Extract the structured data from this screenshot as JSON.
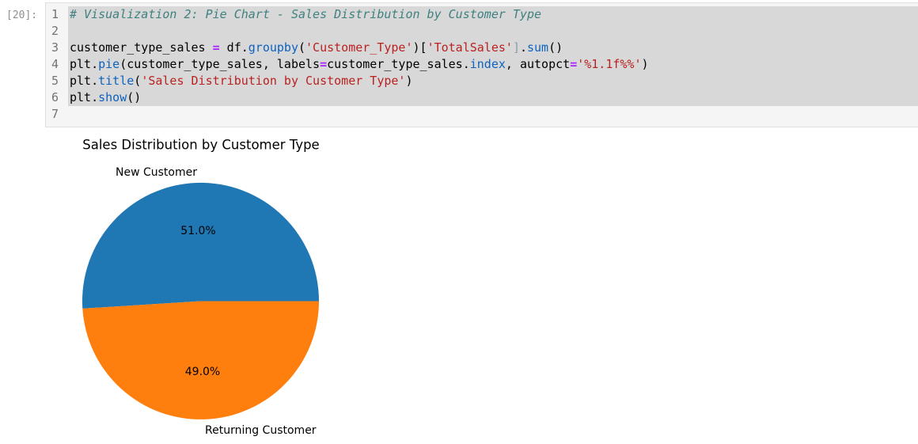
{
  "cell": {
    "execution_prompt": "[20]:",
    "lines": [
      {
        "no": "1",
        "selected": true,
        "tokens": [
          {
            "t": "# Visualization 2: Pie Chart - Sales Distribution by Customer Type",
            "c": "com"
          }
        ]
      },
      {
        "no": "2",
        "selected": true,
        "tokens": []
      },
      {
        "no": "3",
        "selected": true,
        "tokens": [
          {
            "t": "customer_type_sales ",
            "c": "v"
          },
          {
            "t": "=",
            "c": "op"
          },
          {
            "t": " df.",
            "c": "v"
          },
          {
            "t": "groupby",
            "c": "fn"
          },
          {
            "t": "(",
            "c": "v"
          },
          {
            "t": "'Customer_Type'",
            "c": "str"
          },
          {
            "t": ")[",
            "c": "v"
          },
          {
            "t": "'TotalSales'",
            "c": "str"
          },
          {
            "t": "]",
            "c": "brk"
          },
          {
            "t": ".",
            "c": "v"
          },
          {
            "t": "sum",
            "c": "fn"
          },
          {
            "t": "()",
            "c": "v"
          }
        ]
      },
      {
        "no": "4",
        "selected": true,
        "tokens": [
          {
            "t": "plt.",
            "c": "v"
          },
          {
            "t": "pie",
            "c": "fn"
          },
          {
            "t": "(customer_type_sales, labels",
            "c": "v"
          },
          {
            "t": "=",
            "c": "op"
          },
          {
            "t": "customer_type_sales.",
            "c": "v"
          },
          {
            "t": "index",
            "c": "fn"
          },
          {
            "t": ", autopct",
            "c": "v"
          },
          {
            "t": "=",
            "c": "op"
          },
          {
            "t": "'%1.1f%%'",
            "c": "str"
          },
          {
            "t": ")",
            "c": "v"
          }
        ]
      },
      {
        "no": "5",
        "selected": true,
        "tokens": [
          {
            "t": "plt.",
            "c": "v"
          },
          {
            "t": "title",
            "c": "fn"
          },
          {
            "t": "(",
            "c": "v"
          },
          {
            "t": "'Sales Distribution by Customer Type'",
            "c": "str"
          },
          {
            "t": ")",
            "c": "v"
          }
        ]
      },
      {
        "no": "6",
        "selected": true,
        "tokens": [
          {
            "t": "plt.",
            "c": "v"
          },
          {
            "t": "show",
            "c": "fn"
          },
          {
            "t": "()",
            "c": "v"
          }
        ]
      },
      {
        "no": "7",
        "selected": false,
        "tokens": []
      }
    ]
  },
  "chart_data": {
    "type": "pie",
    "title": "Sales Distribution by Customer Type",
    "labels": [
      "New Customer",
      "Returning Customer"
    ],
    "values": [
      51.0,
      49.0
    ],
    "autopct_labels": [
      "51.0%",
      "49.0%"
    ],
    "colors": [
      "#1f77b4",
      "#ff7f0e"
    ],
    "startangle": 0,
    "counterclock": true,
    "legend": false
  }
}
